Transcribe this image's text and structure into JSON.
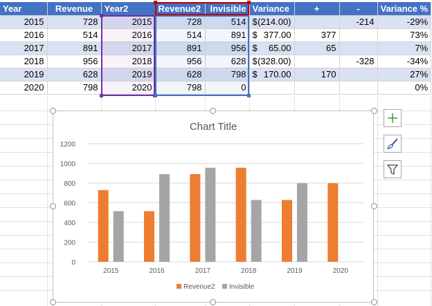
{
  "table": {
    "headers": [
      "Year",
      "Revenue",
      "Year2",
      "Revenue2",
      "Invisible",
      "Variance",
      "+",
      "-",
      "Variance %"
    ],
    "rows": [
      {
        "year": "2015",
        "revenue": "728",
        "year2": "2015",
        "revenue2": "728",
        "invisible": "514",
        "var_sym": "$",
        "var_val": "(214.00)",
        "plus": "",
        "minus": "-214",
        "pct": "-29%"
      },
      {
        "year": "2016",
        "revenue": "514",
        "year2": "2016",
        "revenue2": "514",
        "invisible": "891",
        "var_sym": "$",
        "var_val": "377.00",
        "plus": "377",
        "minus": "",
        "pct": "73%"
      },
      {
        "year": "2017",
        "revenue": "891",
        "year2": "2017",
        "revenue2": "891",
        "invisible": "956",
        "var_sym": "$",
        "var_val": "65.00",
        "plus": "65",
        "minus": "",
        "pct": "7%"
      },
      {
        "year": "2018",
        "revenue": "956",
        "year2": "2018",
        "revenue2": "956",
        "invisible": "628",
        "var_sym": "$",
        "var_val": "(328.00)",
        "plus": "",
        "minus": "-328",
        "pct": "-34%"
      },
      {
        "year": "2019",
        "revenue": "628",
        "year2": "2019",
        "revenue2": "628",
        "invisible": "798",
        "var_sym": "$",
        "var_val": "170.00",
        "plus": "170",
        "minus": "",
        "pct": "27%"
      },
      {
        "year": "2020",
        "revenue": "798",
        "year2": "2020",
        "revenue2": "798",
        "invisible": "0",
        "var_sym": "",
        "var_val": "",
        "plus": "",
        "minus": "",
        "pct": "0%"
      }
    ]
  },
  "chart_buttons": [
    "plus-icon",
    "brush-icon",
    "filter-icon"
  ],
  "colors": {
    "header": "#4472c4",
    "band": "#d9e1f2",
    "revenue2": "#ed7d31",
    "invisible": "#a5a5a5"
  },
  "chart_data": {
    "type": "bar",
    "title": "Chart Title",
    "categories": [
      "2015",
      "2016",
      "2017",
      "2018",
      "2019",
      "2020"
    ],
    "series": [
      {
        "name": "Revenue2",
        "values": [
          728,
          514,
          891,
          956,
          628,
          798
        ]
      },
      {
        "name": "Invisible",
        "values": [
          514,
          891,
          956,
          628,
          798,
          0
        ]
      }
    ],
    "yticks": [
      "0",
      "200",
      "400",
      "600",
      "800",
      "1000",
      "1200"
    ],
    "ylim": [
      0,
      1200
    ],
    "grid": true,
    "legend": "bottom"
  }
}
